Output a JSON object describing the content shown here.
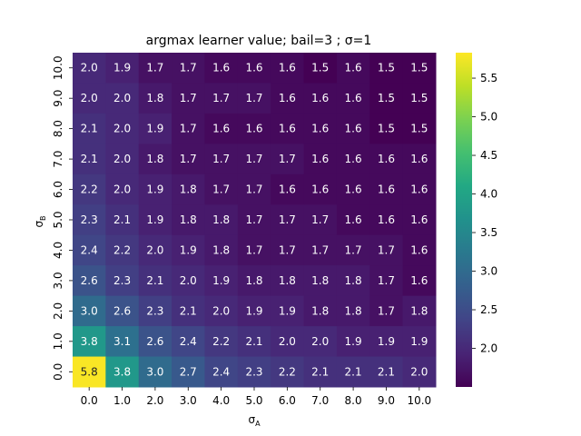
{
  "chart_data": {
    "type": "heatmap",
    "title": "argmax learner value; bail=3 ; σ=1",
    "xlabel": "σ",
    "xlabel_sub": "A",
    "ylabel": "σ",
    "ylabel_sub": "B",
    "x_categories": [
      "0.0",
      "1.0",
      "2.0",
      "3.0",
      "4.0",
      "5.0",
      "6.0",
      "7.0",
      "8.0",
      "9.0",
      "10.0"
    ],
    "y_categories_top_to_bottom": [
      "10.0",
      "9.0",
      "8.0",
      "7.0",
      "6.0",
      "5.0",
      "4.0",
      "3.0",
      "2.0",
      "1.0",
      "0.0"
    ],
    "values": [
      [
        2.0,
        1.9,
        1.7,
        1.7,
        1.6,
        1.6,
        1.6,
        1.5,
        1.6,
        1.5,
        1.5
      ],
      [
        2.0,
        2.0,
        1.8,
        1.7,
        1.7,
        1.7,
        1.6,
        1.6,
        1.6,
        1.5,
        1.5
      ],
      [
        2.1,
        2.0,
        1.9,
        1.7,
        1.6,
        1.6,
        1.6,
        1.6,
        1.6,
        1.5,
        1.5
      ],
      [
        2.1,
        2.0,
        1.8,
        1.7,
        1.7,
        1.7,
        1.7,
        1.6,
        1.6,
        1.6,
        1.6
      ],
      [
        2.2,
        2.0,
        1.9,
        1.8,
        1.7,
        1.7,
        1.6,
        1.6,
        1.6,
        1.6,
        1.6
      ],
      [
        2.3,
        2.1,
        1.9,
        1.8,
        1.8,
        1.7,
        1.7,
        1.7,
        1.6,
        1.6,
        1.6
      ],
      [
        2.4,
        2.2,
        2.0,
        1.9,
        1.8,
        1.7,
        1.7,
        1.7,
        1.7,
        1.7,
        1.6
      ],
      [
        2.6,
        2.3,
        2.1,
        2.0,
        1.9,
        1.8,
        1.8,
        1.8,
        1.8,
        1.7,
        1.6
      ],
      [
        3.0,
        2.6,
        2.3,
        2.1,
        2.0,
        1.9,
        1.9,
        1.8,
        1.8,
        1.7,
        1.8
      ],
      [
        3.8,
        3.1,
        2.6,
        2.4,
        2.2,
        2.1,
        2.0,
        2.0,
        1.9,
        1.9,
        1.9
      ],
      [
        5.8,
        3.8,
        3.0,
        2.7,
        2.4,
        2.3,
        2.2,
        2.1,
        2.1,
        2.1,
        2.0
      ]
    ],
    "colormap": "viridis",
    "colorbar_range": [
      1.5,
      5.83
    ],
    "colorbar_ticks": [
      "2.0",
      "2.5",
      "3.0",
      "3.5",
      "4.0",
      "4.5",
      "5.0",
      "5.5"
    ],
    "grid": false
  }
}
